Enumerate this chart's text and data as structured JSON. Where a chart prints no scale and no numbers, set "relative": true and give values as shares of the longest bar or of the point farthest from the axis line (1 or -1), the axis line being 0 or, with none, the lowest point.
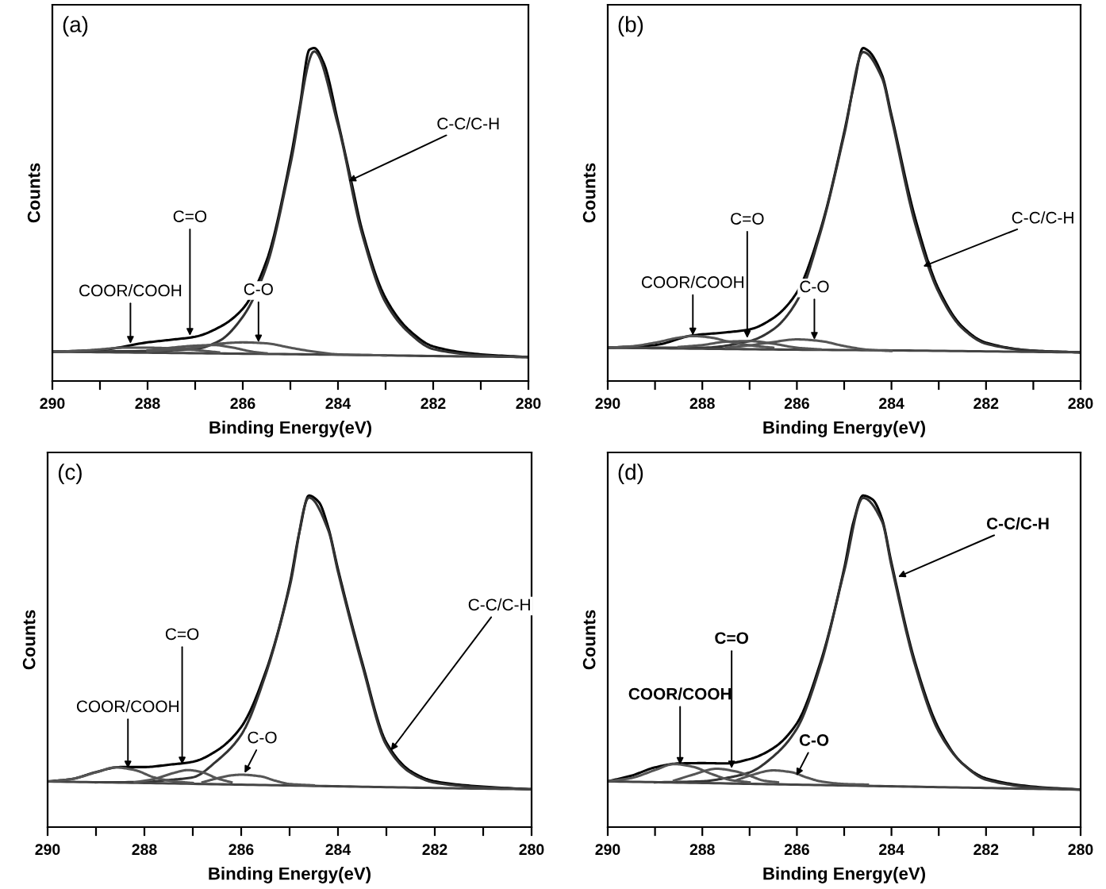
{
  "chart_data": [
    {
      "type": "line",
      "title": "(a)",
      "xlabel": "Binding Energy(eV)",
      "ylabel": "Counts",
      "relative": true,
      "grid": false,
      "marker": "none",
      "line_style": "solid",
      "xlim": [
        290,
        280
      ],
      "xticks": [
        290,
        {
          "value": 289,
          "label": null
        },
        288,
        {
          "value": 287,
          "label": null
        },
        286,
        {
          "value": 285,
          "label": null
        },
        284,
        {
          "value": 283,
          "label": null
        },
        282,
        {
          "value": 281,
          "label": null
        },
        280
      ],
      "series": [
        {
          "color": "#000000",
          "x": [
            290,
            289,
            288,
            287.5,
            287,
            286.5,
            286,
            285.5,
            285,
            284.8,
            284.6,
            284.5,
            284.3,
            284,
            283.7,
            283.5,
            283,
            282.5,
            282,
            281,
            280
          ],
          "values": [
            0.088,
            0.093,
            0.116,
            0.124,
            0.133,
            0.161,
            0.217,
            0.361,
            0.666,
            0.827,
            0.995,
            1.0,
            0.955,
            0.779,
            0.586,
            0.457,
            0.249,
            0.152,
            0.104,
            0.08,
            0.072
          ]
        },
        {
          "color": "#333333",
          "x": [
            290,
            288,
            287,
            286.5,
            286,
            285.5,
            285,
            284.5,
            284,
            283.5,
            283,
            282.5,
            282,
            281,
            280
          ],
          "values": [
            0.088,
            0.09,
            0.096,
            0.12,
            0.193,
            0.345,
            0.65,
            0.99,
            0.769,
            0.445,
            0.236,
            0.144,
            0.096,
            0.077,
            0.071
          ]
        },
        {
          "color": "#444444",
          "x": [
            290,
            288,
            286,
            284,
            282,
            280
          ],
          "values": [
            0.088,
            0.085,
            0.082,
            0.079,
            0.075,
            0.072
          ]
        },
        {
          "color": "#555555",
          "x": [
            288,
            287,
            286.5,
            286,
            285.5,
            285,
            284.5,
            284,
            283
          ],
          "values": [
            0.089,
            0.1,
            0.112,
            0.116,
            0.113,
            0.1,
            0.088,
            0.08,
            0.077
          ]
        },
        {
          "color": "#555555",
          "x": [
            288,
            287.5,
            287,
            286.6,
            286.2,
            285.8,
            285.5
          ],
          "values": [
            0.092,
            0.1,
            0.106,
            0.108,
            0.1,
            0.088,
            0.083
          ]
        },
        {
          "color": "#555555",
          "x": [
            290,
            289.5,
            289,
            288.5,
            288,
            287.5,
            287,
            286.5
          ],
          "values": [
            0.088,
            0.09,
            0.095,
            0.1,
            0.1,
            0.098,
            0.093,
            0.086
          ]
        }
      ],
      "annotations": [
        {
          "text": "COOR/COOH",
          "x": 288.36,
          "y": 0.112
        },
        {
          "text": "C=O",
          "x": 287.11,
          "y": 0.136
        },
        {
          "text": "C-O",
          "x": 285.67,
          "y": 0.116
        },
        {
          "text": "C-C/C-H",
          "x": 283.78,
          "y": 0.6
        }
      ]
    },
    {
      "type": "line",
      "title": "(b)",
      "xlabel": "Binding Energy(eV)",
      "ylabel": "Counts",
      "relative": true,
      "grid": false,
      "marker": "none",
      "line_style": "solid",
      "xlim": [
        290,
        280
      ],
      "xticks": [
        290,
        {
          "value": 289,
          "label": null
        },
        288,
        {
          "value": 287,
          "label": null
        },
        286,
        {
          "value": 285,
          "label": null
        },
        284,
        {
          "value": 283,
          "label": null
        },
        282,
        {
          "value": 281,
          "label": null
        },
        280
      ],
      "series": [
        {
          "color": "#000000",
          "x": [
            290,
            289,
            288.2,
            287.5,
            287,
            286.5,
            286,
            285.5,
            285,
            284.8,
            284.6,
            284.5,
            284.2,
            284,
            283.5,
            283,
            282.5,
            282,
            281,
            280
          ],
          "values": [
            0.1,
            0.108,
            0.137,
            0.146,
            0.155,
            0.189,
            0.266,
            0.455,
            0.747,
            0.885,
            1.0,
            0.993,
            0.919,
            0.799,
            0.49,
            0.275,
            0.163,
            0.115,
            0.091,
            0.086
          ]
        },
        {
          "color": "#333333",
          "x": [
            290,
            288,
            287,
            286.5,
            286,
            285.5,
            285,
            284.6,
            284.2,
            284,
            283.5,
            283,
            282.5,
            282,
            281,
            280
          ],
          "values": [
            0.1,
            0.1,
            0.12,
            0.155,
            0.24,
            0.447,
            0.739,
            0.988,
            0.91,
            0.79,
            0.473,
            0.266,
            0.158,
            0.112,
            0.091,
            0.086
          ]
        },
        {
          "color": "#444444",
          "x": [
            290,
            288,
            286,
            284,
            282,
            280
          ],
          "values": [
            0.1,
            0.097,
            0.094,
            0.092,
            0.089,
            0.086
          ]
        },
        {
          "color": "#555555",
          "x": [
            287.5,
            287,
            286.5,
            286,
            285.5,
            285,
            284.5,
            284
          ],
          "values": [
            0.1,
            0.107,
            0.117,
            0.125,
            0.12,
            0.105,
            0.094,
            0.09
          ]
        },
        {
          "color": "#555555",
          "x": [
            288.5,
            288,
            287.5,
            287,
            286.5,
            286,
            285.5
          ],
          "values": [
            0.102,
            0.108,
            0.118,
            0.12,
            0.112,
            0.1,
            0.095
          ]
        },
        {
          "color": "#555555",
          "x": [
            290,
            289.5,
            289,
            288.5,
            288.2,
            287.8,
            287.5,
            287,
            286.5
          ],
          "values": [
            0.1,
            0.104,
            0.115,
            0.13,
            0.135,
            0.13,
            0.12,
            0.107,
            0.1
          ]
        }
      ],
      "annotations": [
        {
          "text": "COOR/COOH",
          "x": 288.2,
          "y": 0.137
        },
        {
          "text": "C=O",
          "x": 287.05,
          "y": 0.129
        },
        {
          "text": "C-O",
          "x": 285.63,
          "y": 0.124
        },
        {
          "text": "C-C/C-H",
          "x": 283.33,
          "y": 0.344
        }
      ]
    },
    {
      "type": "line",
      "title": "(c)",
      "xlabel": "Binding Energy(eV)",
      "ylabel": "Counts",
      "relative": true,
      "grid": false,
      "marker": "none",
      "line_style": "solid",
      "xlim": [
        290,
        280
      ],
      "xticks": [
        290,
        {
          "value": 289,
          "label": null
        },
        288,
        {
          "value": 287,
          "label": null
        },
        286,
        {
          "value": 285,
          "label": null
        },
        284,
        {
          "value": 283,
          "label": null
        },
        282,
        {
          "value": 281,
          "label": null
        },
        280
      ],
      "series": [
        {
          "color": "#000000",
          "x": [
            290,
            289.5,
            289,
            288.5,
            288,
            287.5,
            287,
            286.5,
            286,
            285.5,
            285,
            284.8,
            284.6,
            284.4,
            284.2,
            284,
            283.5,
            283,
            282.5,
            282,
            281,
            280
          ],
          "values": [
            0.1375,
            0.145,
            0.166,
            0.181,
            0.181,
            0.188,
            0.197,
            0.231,
            0.302,
            0.466,
            0.731,
            0.888,
            1.0,
            0.981,
            0.903,
            0.778,
            0.497,
            0.255,
            0.169,
            0.138,
            0.122,
            0.114
          ]
        },
        {
          "color": "#333333",
          "x": [
            289,
            288,
            287.5,
            287,
            286.5,
            286,
            285.5,
            285,
            284.6,
            284.2,
            284,
            283.5,
            283,
            282.5,
            282,
            281,
            280
          ],
          "values": [
            0.135,
            0.136,
            0.142,
            0.15,
            0.2,
            0.278,
            0.458,
            0.723,
            0.994,
            0.895,
            0.77,
            0.489,
            0.247,
            0.164,
            0.134,
            0.12,
            0.114
          ]
        },
        {
          "color": "#444444",
          "x": [
            290,
            288,
            286,
            284,
            282,
            280
          ],
          "values": [
            0.1375,
            0.133,
            0.128,
            0.123,
            0.118,
            0.114
          ]
        },
        {
          "color": "#555555",
          "x": [
            286.8,
            286.5,
            286.2,
            286,
            285.6,
            285.3,
            285,
            284.5
          ],
          "values": [
            0.135,
            0.147,
            0.156,
            0.158,
            0.153,
            0.14,
            0.13,
            0.126
          ]
        },
        {
          "color": "#555555",
          "x": [
            288.2,
            287.8,
            287.4,
            287.1,
            286.8,
            286.5,
            286.2
          ],
          "values": [
            0.135,
            0.145,
            0.163,
            0.172,
            0.165,
            0.147,
            0.135
          ]
        },
        {
          "color": "#555555",
          "x": [
            290,
            289.5,
            289,
            288.6,
            288.2,
            287.8,
            287.4,
            287
          ],
          "values": [
            0.137,
            0.145,
            0.165,
            0.18,
            0.172,
            0.15,
            0.138,
            0.133
          ]
        }
      ],
      "annotations": [
        {
          "text": "COOR/COOH",
          "x": 288.34,
          "y": 0.177
        },
        {
          "text": "C=O",
          "x": 287.22,
          "y": 0.189
        },
        {
          "text": "C-O",
          "x": 285.93,
          "y": 0.163
        },
        {
          "text": "C-C/C-H",
          "x": 282.91,
          "y": 0.231
        }
      ]
    },
    {
      "type": "line",
      "title": "(d)",
      "xlabel": "Binding Energy(eV)",
      "ylabel": "Counts",
      "relative": true,
      "grid": false,
      "marker": "none",
      "line_style": "solid",
      "xlim": [
        290,
        280
      ],
      "xticks": [
        290,
        {
          "value": 289,
          "label": null
        },
        288,
        {
          "value": 287,
          "label": null
        },
        286,
        {
          "value": 285,
          "label": null
        },
        284,
        {
          "value": 283,
          "label": null
        },
        282,
        {
          "value": 281,
          "label": null
        },
        280
      ],
      "series": [
        {
          "color": "#000000",
          "x": [
            290,
            289.5,
            289,
            288.5,
            288,
            287.5,
            287,
            286.5,
            286,
            285.5,
            285,
            284.8,
            284.6,
            284.4,
            284.2,
            284,
            283.5,
            283,
            282.5,
            282,
            281,
            280
          ],
          "values": [
            0.138,
            0.155,
            0.18,
            0.192,
            0.193,
            0.192,
            0.205,
            0.238,
            0.313,
            0.497,
            0.78,
            0.922,
            1.0,
            0.988,
            0.93,
            0.797,
            0.497,
            0.297,
            0.192,
            0.147,
            0.122,
            0.113
          ]
        },
        {
          "color": "#333333",
          "x": [
            289,
            288,
            287.5,
            287,
            286.5,
            286,
            285.5,
            285,
            284.6,
            284.2,
            284,
            283.5,
            283,
            282.5,
            282,
            281,
            280
          ],
          "values": [
            0.135,
            0.138,
            0.148,
            0.165,
            0.213,
            0.297,
            0.488,
            0.772,
            0.993,
            0.922,
            0.788,
            0.488,
            0.288,
            0.192,
            0.143,
            0.12,
            0.113
          ]
        },
        {
          "color": "#444444",
          "x": [
            290,
            288,
            286,
            284,
            282,
            280
          ],
          "values": [
            0.138,
            0.133,
            0.128,
            0.123,
            0.118,
            0.113
          ]
        },
        {
          "color": "#555555",
          "x": [
            287.3,
            287,
            286.5,
            286.1,
            285.8,
            285.5,
            285,
            284.5
          ],
          "values": [
            0.14,
            0.155,
            0.171,
            0.165,
            0.15,
            0.138,
            0.13,
            0.128
          ]
        },
        {
          "color": "#555555",
          "x": [
            288.6,
            288.2,
            287.7,
            287.3,
            287,
            286.7,
            286.4
          ],
          "values": [
            0.14,
            0.158,
            0.176,
            0.168,
            0.155,
            0.14,
            0.135
          ]
        },
        {
          "color": "#555555",
          "x": [
            290,
            289.5,
            289,
            288.6,
            288.2,
            287.8,
            287.4,
            287
          ],
          "values": [
            0.138,
            0.148,
            0.172,
            0.19,
            0.182,
            0.16,
            0.142,
            0.135
          ]
        }
      ],
      "annotations": [
        {
          "text": "COOR/COOH",
          "x": 288.47,
          "y": 0.188
        },
        {
          "text": "C=O",
          "x": 287.38,
          "y": 0.177
        },
        {
          "text": "C-O",
          "x": 286.01,
          "y": 0.155
        },
        {
          "text": "C-C/C-H",
          "x": 283.86,
          "y": 0.755
        }
      ]
    }
  ]
}
